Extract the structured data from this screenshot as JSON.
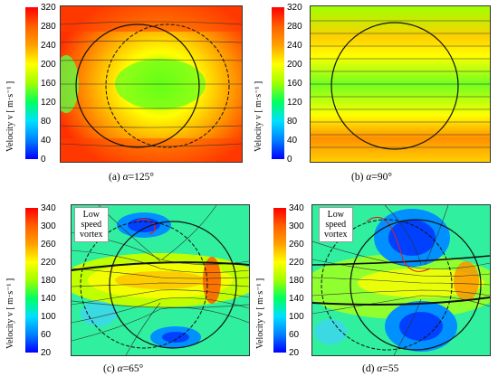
{
  "panels": [
    {
      "id": "a",
      "caption_prefix": "(a) ",
      "alpha_symbol": "α",
      "caption_value": "=125°",
      "ticks": [
        "320",
        "280",
        "240",
        "200",
        "160",
        "120",
        "80",
        "40",
        "0"
      ],
      "axis_label": "Velocity v  [ m·s⁻¹ ]"
    },
    {
      "id": "b",
      "caption_prefix": "(b) ",
      "alpha_symbol": "α",
      "caption_value": "=90°",
      "ticks": [
        "320",
        "280",
        "240",
        "200",
        "160",
        "120",
        "80",
        "40",
        "0"
      ],
      "axis_label": "Velocity v  [ m·s⁻¹ ]"
    },
    {
      "id": "c",
      "caption_prefix": "(c) ",
      "alpha_symbol": "α",
      "caption_value": "=65°",
      "ticks": [
        "340",
        "300",
        "260",
        "220",
        "180",
        "140",
        "100",
        "60",
        "20"
      ],
      "axis_label": "Velocity v  [ m·s⁻¹ ]",
      "annotation": [
        "Low speed",
        "vortex"
      ]
    },
    {
      "id": "d",
      "caption_prefix": "(d) ",
      "alpha_symbol": "α",
      "caption_value": "=55",
      "ticks": [
        "340",
        "300",
        "260",
        "220",
        "180",
        "140",
        "100",
        "60",
        "20"
      ],
      "axis_label": "Velocity v  [ m·s⁻¹ ]",
      "annotation": [
        "Low speed",
        "vortex"
      ]
    }
  ],
  "colors": {
    "cmap": [
      "#0000ff",
      "#0080ff",
      "#00d0ff",
      "#00ff80",
      "#60ff00",
      "#c8ff00",
      "#ffff00",
      "#ff9000",
      "#ff0000"
    ],
    "streamline": "#333333",
    "vortex": "#e02020"
  }
}
